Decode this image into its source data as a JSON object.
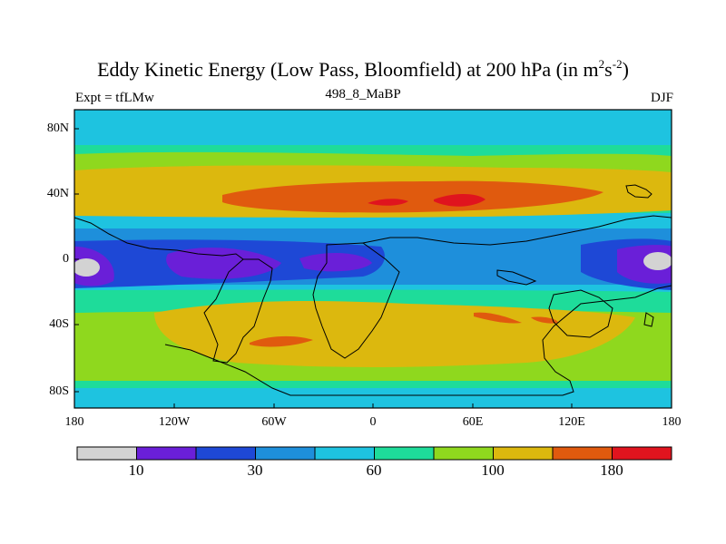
{
  "title_main": "Eddy Kinetic Energy (Low Pass, Bloomfield) at 200 hPa (in m",
  "title_sup1": "2",
  "title_mid": "s",
  "title_sup2": "-2",
  "title_end": ")",
  "experiment": "Expt = tfLMw",
  "case_name": "498_8_MaBP",
  "season": "DJF",
  "lat_ticks": [
    "80N",
    "40N",
    "0",
    "40S",
    "80S"
  ],
  "lon_ticks": [
    "180",
    "120W",
    "60W",
    "0",
    "60E",
    "120E",
    "180"
  ],
  "colorbar": {
    "colors": [
      "#d3d3d3",
      "#6a1fd8",
      "#1e48d6",
      "#1e8fdb",
      "#1ec3e0",
      "#1edc9a",
      "#8fd81e",
      "#dcb80e",
      "#e05a0e",
      "#e0141e"
    ],
    "labels": [
      "10",
      "30",
      "60",
      "100",
      "180"
    ]
  }
}
